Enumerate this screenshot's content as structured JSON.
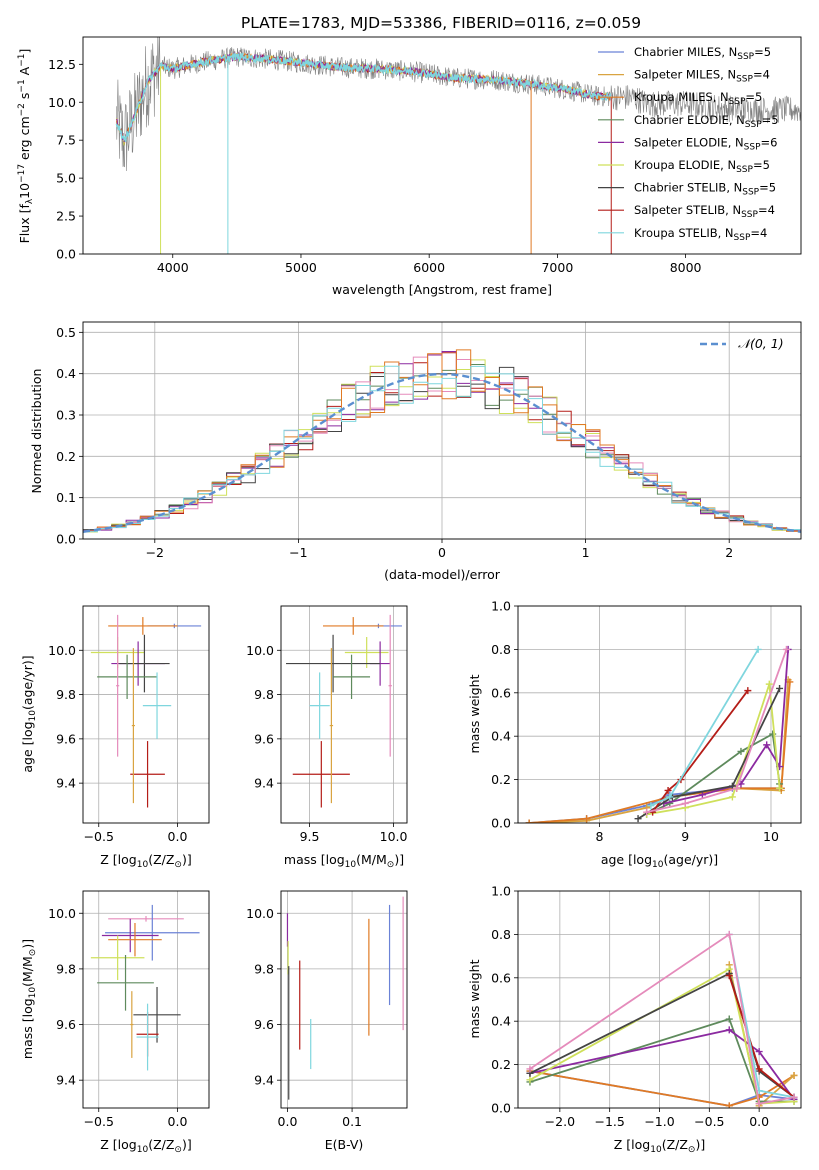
{
  "figure_title": "PLATE=1783, MJD=53386, FIBERID=0116, z=0.059",
  "colors": {
    "Chabrier MILES": "#6b82d6",
    "Salpeter MILES": "#d9a441",
    "Kroupa MILES": "#e07a24",
    "Chabrier ELODIE": "#5e8a5c",
    "Salpeter ELODIE": "#8b2aa0",
    "Kroupa ELODIE": "#cfe05b",
    "Chabrier STELIB": "#444444",
    "Salpeter STELIB": "#b41d18",
    "Kroupa STELIB": "#7fd6de",
    "pink": "#e58bbb",
    "data": "#808080",
    "gaussian": "#5b8fd0"
  },
  "chart_data": [
    {
      "id": "spectrum",
      "type": "line",
      "xlabel": "wavelength [Angstrom, rest frame]",
      "ylabel_main": "Flux [f",
      "ylabel_sub": "λ",
      "ylabel_rest": "10",
      "ylabel_exp1": "−17",
      "ylabel_unit": " erg cm",
      "ylabel_exp2": "−2",
      "ylabel_s": " s",
      "ylabel_exp3": "−1",
      "ylabel_A": " A",
      "ylabel_exp4": "−1",
      "ylabel_end": "]",
      "xlim": [
        3300,
        8900
      ],
      "ylim": [
        0,
        14.3
      ],
      "xticks": [
        4000,
        5000,
        6000,
        7000,
        8000
      ],
      "yticks": [
        0.0,
        2.5,
        5.0,
        7.5,
        10.0,
        12.5
      ],
      "ytick_labels": [
        "0.0",
        "2.5",
        "5.0",
        "7.5",
        "10.0",
        "12.5"
      ],
      "continuum": [
        [
          3560,
          8.8
        ],
        [
          3620,
          7.4
        ],
        [
          3700,
          9.0
        ],
        [
          3800,
          11.3
        ],
        [
          3900,
          12.4
        ],
        [
          4000,
          12.2
        ],
        [
          4200,
          12.6
        ],
        [
          4500,
          13.0
        ],
        [
          4800,
          12.8
        ],
        [
          5000,
          12.6
        ],
        [
          5300,
          12.3
        ],
        [
          5600,
          12.2
        ],
        [
          5900,
          12.0
        ],
        [
          6200,
          11.6
        ],
        [
          6500,
          11.5
        ],
        [
          6800,
          11.2
        ],
        [
          7100,
          10.8
        ],
        [
          7300,
          10.4
        ],
        [
          7600,
          10.3
        ],
        [
          7700,
          9.9
        ],
        [
          8000,
          9.9
        ],
        [
          8300,
          9.6
        ],
        [
          8600,
          9.5
        ],
        [
          8900,
          9.5
        ]
      ],
      "model_xmax": 7420,
      "legend": [
        {
          "label": "Chabrier MILES, N",
          "sub": "SSP",
          "suffix": "=5"
        },
        {
          "label": "Salpeter MILES, N",
          "sub": "SSP",
          "suffix": "=4"
        },
        {
          "label": "Kroupa MILES, N",
          "sub": "SSP",
          "suffix": "=5"
        },
        {
          "label": "Chabrier ELODIE, N",
          "sub": "SSP",
          "suffix": "=5"
        },
        {
          "label": "Salpeter ELODIE, N",
          "sub": "SSP",
          "suffix": "=6"
        },
        {
          "label": "Kroupa ELODIE, N",
          "sub": "SSP",
          "suffix": "=5"
        },
        {
          "label": "Chabrier STELIB, N",
          "sub": "SSP",
          "suffix": "=5"
        },
        {
          "label": "Salpeter STELIB, N",
          "sub": "SSP",
          "suffix": "=4"
        },
        {
          "label": "Kroupa STELIB, N",
          "sub": "SSP",
          "suffix": "=4"
        }
      ]
    },
    {
      "id": "residuals",
      "type": "line",
      "xlabel": "(data-model)/error",
      "ylabel": "Normed distribution",
      "xlim": [
        -2.5,
        2.5
      ],
      "ylim": [
        0,
        0.525
      ],
      "xticks": [
        -2,
        -1,
        0,
        1,
        2
      ],
      "xtick_labels": [
        "−2",
        "−1",
        "0",
        "1",
        "2"
      ],
      "yticks": [
        0.0,
        0.1,
        0.2,
        0.3,
        0.4,
        0.5
      ],
      "ytick_labels": [
        "0.0",
        "0.1",
        "0.2",
        "0.3",
        "0.4",
        "0.5"
      ],
      "legend_label": "𝒩(0, 1)",
      "bin_width": 0.1
    },
    {
      "id": "age-Z",
      "type": "scatter",
      "xlabel": "Z [log",
      "xlabel_sub": "10",
      "xlabel_rest": "(Z/Z",
      "xlabel_sub2": "⊙",
      "xlabel_end": ")]",
      "ylabel": "age  [log",
      "ylabel_sub": "10",
      "ylabel_rest": "(age/yr)]",
      "xlim": [
        -0.6,
        0.2
      ],
      "ylim": [
        9.22,
        10.2
      ],
      "xticks": [
        -0.5,
        0.0
      ],
      "xtick_labels": [
        "−0.5",
        "0.0"
      ],
      "yticks": [
        9.4,
        9.6,
        9.8,
        10.0
      ],
      "ytick_labels": [
        "9.4",
        "9.6",
        "9.8",
        "10.0"
      ],
      "points": [
        {
          "c": "Chabrier MILES",
          "x": -0.02,
          "y": 10.11,
          "xe": 0.17,
          "ye": 0.01
        },
        {
          "c": "Kroupa MILES",
          "x": -0.22,
          "y": 10.11,
          "xe": 0.22,
          "ye": 0.04
        },
        {
          "c": "Kroupa ELODIE",
          "x": -0.38,
          "y": 9.99,
          "xe": 0.17,
          "ye": 0.07
        },
        {
          "c": "Salpeter ELODIE",
          "x": -0.25,
          "y": 9.94,
          "xe": 0.17,
          "ye": 0.1
        },
        {
          "c": "Chabrier STELIB",
          "x": -0.21,
          "y": 9.94,
          "xe": 0.16,
          "ye": 0.13
        },
        {
          "c": "Chabrier ELODIE",
          "x": -0.32,
          "y": 9.88,
          "xe": 0.19,
          "ye": 0.1
        },
        {
          "c": "pink",
          "x": -0.38,
          "y": 9.84,
          "xe": 0.01,
          "ye": 0.32
        },
        {
          "c": "Kroupa STELIB",
          "x": -0.13,
          "y": 9.75,
          "xe": 0.09,
          "ye": 0.15
        },
        {
          "c": "Salpeter STELIB",
          "x": -0.19,
          "y": 9.44,
          "xe": 0.11,
          "ye": 0.15
        },
        {
          "c": "Salpeter MILES",
          "x": -0.28,
          "y": 9.66,
          "xe": 0.01,
          "ye": 0.35
        }
      ]
    },
    {
      "id": "age-mass",
      "type": "scatter",
      "xlabel": "mass [log",
      "xlabel_sub": "10",
      "xlabel_rest": "(M/M",
      "xlabel_sub2": "⊙",
      "xlabel_end": ")]",
      "xlim": [
        9.33,
        10.08
      ],
      "ylim": [
        9.22,
        10.2
      ],
      "xticks": [
        9.5,
        10.0
      ],
      "xtick_labels": [
        "9.5",
        "10.0"
      ],
      "yticks": [
        9.4,
        9.6,
        9.8,
        10.0
      ],
      "ytick_labels": [
        "9.4",
        "9.6",
        "9.8",
        "10.0"
      ],
      "points": [
        {
          "c": "Chabrier MILES",
          "x": 9.91,
          "y": 10.11,
          "xe": 0.14,
          "ye": 0.01
        },
        {
          "c": "Kroupa MILES",
          "x": 9.76,
          "y": 10.11,
          "xe": 0.18,
          "ye": 0.04
        },
        {
          "c": "Kroupa ELODIE",
          "x": 9.84,
          "y": 9.99,
          "xe": 0.13,
          "ye": 0.07
        },
        {
          "c": "Salpeter ELODIE",
          "x": 9.92,
          "y": 9.94,
          "xe": 0.06,
          "ye": 0.1
        },
        {
          "c": "Chabrier STELIB",
          "x": 9.64,
          "y": 9.94,
          "xe": 0.28,
          "ye": 0.13
        },
        {
          "c": "Chabrier ELODIE",
          "x": 9.75,
          "y": 9.88,
          "xe": 0.11,
          "ye": 0.1
        },
        {
          "c": "pink",
          "x": 9.98,
          "y": 9.84,
          "xe": 0.01,
          "ye": 0.32
        },
        {
          "c": "Kroupa STELIB",
          "x": 9.56,
          "y": 9.75,
          "xe": 0.06,
          "ye": 0.15
        },
        {
          "c": "Salpeter STELIB",
          "x": 9.57,
          "y": 9.44,
          "xe": 0.17,
          "ye": 0.15
        },
        {
          "c": "Salpeter MILES",
          "x": 9.63,
          "y": 9.66,
          "xe": 0.01,
          "ye": 0.35
        }
      ]
    },
    {
      "id": "weight-age",
      "type": "line",
      "xlabel": "age  [log",
      "xlabel_sub": "10",
      "xlabel_rest": "(age/yr)]",
      "ylabel": "mass weight",
      "xlim": [
        7.05,
        10.35
      ],
      "ylim": [
        0,
        1.0
      ],
      "xticks": [
        8,
        9,
        10
      ],
      "xtick_labels": [
        "8",
        "9",
        "10"
      ],
      "yticks": [
        0.0,
        0.2,
        0.4,
        0.6,
        0.8,
        1.0
      ],
      "ytick_labels": [
        "0.0",
        "0.2",
        "0.4",
        "0.6",
        "0.8",
        "1.0"
      ],
      "series": [
        {
          "c": "Chabrier MILES",
          "x": [
            7.18,
            7.85,
            8.55,
            8.82,
            9.55,
            10.12
          ],
          "y": [
            0.0,
            0.02,
            0.08,
            0.13,
            0.16,
            0.16
          ]
        },
        {
          "c": "Salpeter MILES",
          "x": [
            7.18,
            7.85,
            8.55,
            8.82,
            9.6,
            10.12,
            10.2
          ],
          "y": [
            0.0,
            0.01,
            0.07,
            0.12,
            0.16,
            0.15,
            0.66
          ]
        },
        {
          "c": "Kroupa MILES",
          "x": [
            7.18,
            7.85,
            8.82,
            9.6,
            10.12,
            10.22
          ],
          "y": [
            0.0,
            0.02,
            0.12,
            0.16,
            0.16,
            0.65
          ]
        },
        {
          "c": "Chabrier ELODIE",
          "x": [
            8.55,
            8.82,
            9.65,
            10.02,
            10.1
          ],
          "y": [
            0.04,
            0.09,
            0.33,
            0.41,
            0.18
          ]
        },
        {
          "c": "Salpeter ELODIE",
          "x": [
            8.75,
            9.2,
            9.65,
            9.95,
            10.1,
            10.2
          ],
          "y": [
            0.09,
            0.13,
            0.18,
            0.36,
            0.26,
            0.8
          ]
        },
        {
          "c": "Kroupa ELODIE",
          "x": [
            8.55,
            9.0,
            9.55,
            9.98,
            10.1
          ],
          "y": [
            0.04,
            0.07,
            0.12,
            0.64,
            0.16
          ]
        },
        {
          "c": "Chabrier STELIB",
          "x": [
            8.45,
            8.85,
            9.55,
            10.1
          ],
          "y": [
            0.02,
            0.12,
            0.17,
            0.62
          ]
        },
        {
          "c": "Salpeter STELIB",
          "x": [
            8.62,
            8.8,
            8.95,
            9.73
          ],
          "y": [
            0.05,
            0.15,
            0.2,
            0.61
          ]
        },
        {
          "c": "Kroupa STELIB",
          "x": [
            8.6,
            8.82,
            9.85
          ],
          "y": [
            0.08,
            0.12,
            0.8
          ]
        },
        {
          "c": "pink",
          "x": [
            8.55,
            9.0,
            9.6,
            10.18
          ],
          "y": [
            0.05,
            0.09,
            0.16,
            0.8
          ]
        }
      ]
    },
    {
      "id": "mass-Z",
      "type": "scatter",
      "xlabel": "Z [log",
      "xlabel_sub": "10",
      "xlabel_rest": "(Z/Z",
      "xlabel_sub2": "⊙",
      "xlabel_end": ")]",
      "ylabel": "mass [log",
      "ylabel_sub": "10",
      "ylabel_rest": "(M/M",
      "ylabel_sub2": "⊙",
      "ylabel_end": ")]",
      "xlim": [
        -0.6,
        0.2
      ],
      "ylim": [
        9.3,
        10.08
      ],
      "xticks": [
        -0.5,
        0.0
      ],
      "xtick_labels": [
        "−0.5",
        "0.0"
      ],
      "yticks": [
        9.4,
        9.6,
        9.8,
        10.0
      ],
      "ytick_labels": [
        "9.4",
        "9.6",
        "9.8",
        "10.0"
      ],
      "points": [
        {
          "c": "pink",
          "x": -0.2,
          "y": 9.98,
          "xe": 0.24,
          "ye": 0.01
        },
        {
          "c": "Chabrier MILES",
          "x": -0.16,
          "y": 9.93,
          "xe": 0.3,
          "ye": 0.1
        },
        {
          "c": "Salpeter ELODIE",
          "x": -0.3,
          "y": 9.92,
          "xe": 0.18,
          "ye": 0.06
        },
        {
          "c": "Kroupa MILES",
          "x": -0.27,
          "y": 9.905,
          "xe": 0.17,
          "ye": 0.06
        },
        {
          "c": "Kroupa ELODIE",
          "x": -0.38,
          "y": 9.84,
          "xe": 0.17,
          "ye": 0.08
        },
        {
          "c": "Chabrier ELODIE",
          "x": -0.33,
          "y": 9.75,
          "xe": 0.18,
          "ye": 0.1
        },
        {
          "c": "Chabrier STELIB",
          "x": -0.13,
          "y": 9.635,
          "xe": 0.15,
          "ye": 0.1
        },
        {
          "c": "Salpeter STELIB",
          "x": -0.19,
          "y": 9.565,
          "xe": 0.07,
          "ye": 0.08
        },
        {
          "c": "Kroupa STELIB",
          "x": -0.19,
          "y": 9.555,
          "xe": 0.07,
          "ye": 0.12
        },
        {
          "c": "Salpeter MILES",
          "x": -0.29,
          "y": 9.6,
          "xe": 0.01,
          "ye": 0.12
        }
      ]
    },
    {
      "id": "mass-EBV",
      "type": "scatter",
      "xlabel": "E(B-V)",
      "xlim": [
        -0.01,
        0.185
      ],
      "ylim": [
        9.3,
        10.08
      ],
      "xticks": [
        0.0,
        0.1
      ],
      "xtick_labels": [
        "0.0",
        "0.1"
      ],
      "yticks": [
        9.4,
        9.6,
        9.8,
        10.0
      ],
      "ytick_labels": [
        "9.4",
        "9.6",
        "9.8",
        "10.0"
      ],
      "points": [
        {
          "c": "Salpeter ELODIE",
          "x": 0.0,
          "y": 9.94,
          "ye": 0.06
        },
        {
          "c": "Kroupa ELODIE",
          "x": 0.001,
          "y": 9.84,
          "ye": 0.06
        },
        {
          "c": "Chabrier STELIB",
          "x": 0.002,
          "y": 9.57,
          "ye": 0.24
        },
        {
          "c": "Salpeter STELIB",
          "x": 0.019,
          "y": 9.67,
          "ye": 0.16
        },
        {
          "c": "Kroupa STELIB",
          "x": 0.036,
          "y": 9.53,
          "ye": 0.09
        },
        {
          "c": "Kroupa MILES",
          "x": 0.126,
          "y": 9.77,
          "ye": 0.21
        },
        {
          "c": "Chabrier MILES",
          "x": 0.158,
          "y": 9.85,
          "ye": 0.18
        },
        {
          "c": "pink",
          "x": 0.179,
          "y": 9.82,
          "ye": 0.24
        }
      ]
    },
    {
      "id": "weight-Z",
      "type": "line",
      "xlabel": "Z [log",
      "xlabel_sub": "10",
      "xlabel_rest": "(Z/Z",
      "xlabel_sub2": "⊙",
      "xlabel_end": ")]",
      "ylabel": "mass weight",
      "xlim": [
        -2.42,
        0.42
      ],
      "ylim": [
        0,
        1.0
      ],
      "xticks": [
        -2.0,
        -1.5,
        -1.0,
        -0.5,
        0.0
      ],
      "xtick_labels": [
        "−2.0",
        "−1.5",
        "−1.0",
        "−0.5",
        "0.0"
      ],
      "yticks": [
        0.0,
        0.2,
        0.4,
        0.6,
        0.8,
        1.0
      ],
      "ytick_labels": [
        "0.0",
        "0.2",
        "0.4",
        "0.6",
        "0.8",
        "1.0"
      ],
      "series": [
        {
          "c": "Chabrier MILES",
          "x": [
            -2.3,
            -0.3,
            0.0,
            0.35
          ],
          "y": [
            0.17,
            0.01,
            0.06,
            0.04
          ]
        },
        {
          "c": "Kroupa MILES",
          "x": [
            -2.3,
            -0.3,
            0.0,
            0.35
          ],
          "y": [
            0.17,
            0.01,
            0.05,
            0.15
          ]
        },
        {
          "c": "Salpeter MILES",
          "x": [
            -0.3,
            0.0,
            0.35
          ],
          "y": [
            0.66,
            0.01,
            0.15
          ]
        },
        {
          "c": "Chabrier ELODIE",
          "x": [
            -2.3,
            -0.3,
            0.0,
            0.35
          ],
          "y": [
            0.12,
            0.41,
            0.03,
            0.03
          ]
        },
        {
          "c": "Salpeter ELODIE",
          "x": [
            -2.3,
            -0.3,
            0.0,
            0.35
          ],
          "y": [
            0.16,
            0.36,
            0.26,
            0.04
          ]
        },
        {
          "c": "Kroupa ELODIE",
          "x": [
            -2.3,
            -0.3,
            0.0,
            0.35
          ],
          "y": [
            0.13,
            0.64,
            0.02,
            0.03
          ]
        },
        {
          "c": "Chabrier STELIB",
          "x": [
            -2.3,
            -0.3,
            0.0,
            0.35
          ],
          "y": [
            0.16,
            0.62,
            0.17,
            0.05
          ]
        },
        {
          "c": "Salpeter STELIB",
          "x": [
            -0.3,
            0.0,
            0.35
          ],
          "y": [
            0.61,
            0.18,
            0.05
          ]
        },
        {
          "c": "Kroupa STELIB",
          "x": [
            -0.3,
            0.0,
            0.35
          ],
          "y": [
            0.8,
            0.08,
            0.05
          ]
        },
        {
          "c": "pink",
          "x": [
            -2.3,
            -0.3,
            0.0,
            0.35
          ],
          "y": [
            0.18,
            0.8,
            0.02,
            0.05
          ]
        }
      ]
    }
  ]
}
